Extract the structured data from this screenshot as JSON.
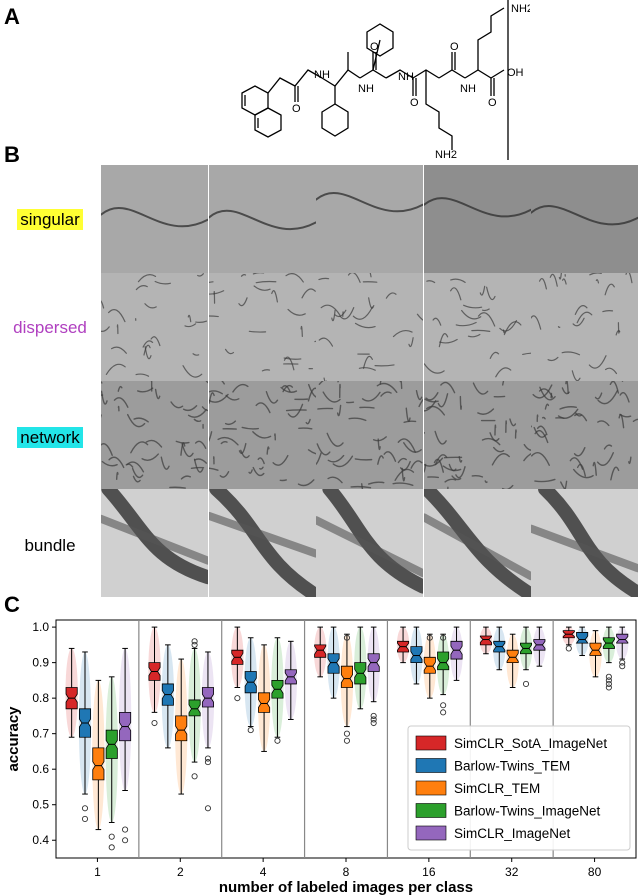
{
  "panels": {
    "a": "A",
    "b": "B",
    "c": "C"
  },
  "chemistry": {
    "labels": [
      "NH2",
      "NH",
      "NH",
      "NH",
      "NH",
      "OH",
      "NH2",
      "O",
      "O",
      "O",
      "O",
      "O"
    ]
  },
  "micrographs": {
    "rows": [
      {
        "label": "singular",
        "highlight": "#ffff33",
        "text_color": "#000000"
      },
      {
        "label": "dispersed",
        "highlight": "",
        "text_color": "#b040c0"
      },
      {
        "label": "network",
        "highlight": "#22e5e8",
        "text_color": "#000000"
      },
      {
        "label": "bundle",
        "highlight": "",
        "text_color": "#000000"
      }
    ],
    "columns": 5
  },
  "chart_data": {
    "type": "box",
    "xlabel": "number of labeled images per class",
    "ylabel": "accuracy",
    "categories": [
      "1",
      "2",
      "4",
      "8",
      "16",
      "32",
      "80"
    ],
    "ylim": [
      0.35,
      1.02
    ],
    "yticks": [
      0.4,
      0.5,
      0.6,
      0.7,
      0.8,
      0.9,
      1.0
    ],
    "legend_position": "bottom-right",
    "series": [
      {
        "name": "SimCLR_SotA_ImageNet",
        "color": "#d62728",
        "medians": [
          0.8,
          0.875,
          0.915,
          0.935,
          0.945,
          0.965,
          0.98
        ],
        "q1": [
          0.77,
          0.85,
          0.895,
          0.915,
          0.93,
          0.95,
          0.97
        ],
        "q3": [
          0.83,
          0.9,
          0.935,
          0.95,
          0.96,
          0.975,
          0.99
        ],
        "whislo": [
          0.69,
          0.76,
          0.83,
          0.86,
          0.9,
          0.925,
          0.95
        ],
        "whishi": [
          0.94,
          1.0,
          1.0,
          1.0,
          1.0,
          1.0,
          1.0
        ],
        "fliers": [
          [],
          [
            0.73
          ],
          [
            0.8
          ],
          [],
          [],
          [],
          [
            0.94
          ]
        ]
      },
      {
        "name": "Barlow-Twins_TEM",
        "color": "#1f77b4",
        "medians": [
          0.73,
          0.81,
          0.845,
          0.9,
          0.92,
          0.945,
          0.965
        ],
        "q1": [
          0.69,
          0.78,
          0.815,
          0.87,
          0.9,
          0.93,
          0.955
        ],
        "q3": [
          0.77,
          0.84,
          0.875,
          0.925,
          0.945,
          0.96,
          0.985
        ],
        "whislo": [
          0.53,
          0.66,
          0.72,
          0.8,
          0.84,
          0.88,
          0.92
        ],
        "whishi": [
          0.93,
          0.95,
          0.97,
          1.0,
          1.0,
          1.0,
          1.0
        ],
        "fliers": [
          [
            0.49,
            0.46
          ],
          [],
          [
            0.71
          ],
          [],
          [],
          [],
          []
        ]
      },
      {
        "name": "SimCLR_TEM",
        "color": "#ff7f0e",
        "medians": [
          0.61,
          0.71,
          0.785,
          0.855,
          0.89,
          0.915,
          0.935
        ],
        "q1": [
          0.57,
          0.68,
          0.76,
          0.83,
          0.87,
          0.9,
          0.92
        ],
        "q3": [
          0.66,
          0.75,
          0.815,
          0.89,
          0.915,
          0.935,
          0.955
        ],
        "whislo": [
          0.43,
          0.53,
          0.65,
          0.72,
          0.8,
          0.83,
          0.86
        ],
        "whishi": [
          0.85,
          0.91,
          0.95,
          0.98,
          0.98,
          0.98,
          0.99
        ],
        "fliers": [
          [],
          [],
          [],
          [
            0.7,
            0.68,
            0.97
          ],
          [
            0.97
          ],
          [],
          []
        ]
      },
      {
        "name": "Barlow-Twins_ImageNet",
        "color": "#2ca02c",
        "medians": [
          0.67,
          0.77,
          0.825,
          0.87,
          0.9,
          0.94,
          0.955
        ],
        "q1": [
          0.63,
          0.75,
          0.8,
          0.84,
          0.88,
          0.925,
          0.94
        ],
        "q3": [
          0.71,
          0.795,
          0.85,
          0.9,
          0.93,
          0.955,
          0.97
        ],
        "whislo": [
          0.45,
          0.62,
          0.69,
          0.77,
          0.81,
          0.88,
          0.9
        ],
        "whishi": [
          0.86,
          0.94,
          0.97,
          1.0,
          0.98,
          1.0,
          1.0
        ],
        "fliers": [
          [
            0.41,
            0.38
          ],
          [
            0.96,
            0.95,
            0.58
          ],
          [
            0.68
          ],
          [],
          [
            0.78,
            0.76,
            0.97
          ],
          [
            0.84
          ],
          [
            0.86,
            0.85,
            0.84,
            0.83
          ]
        ]
      },
      {
        "name": "SimCLR_ImageNet",
        "color": "#9467bd",
        "medians": [
          0.72,
          0.8,
          0.86,
          0.9,
          0.935,
          0.95,
          0.965
        ],
        "q1": [
          0.68,
          0.775,
          0.84,
          0.875,
          0.91,
          0.935,
          0.955
        ],
        "q3": [
          0.76,
          0.83,
          0.88,
          0.925,
          0.96,
          0.965,
          0.98
        ],
        "whislo": [
          0.54,
          0.66,
          0.74,
          0.79,
          0.85,
          0.89,
          0.91
        ],
        "whishi": [
          0.94,
          0.93,
          0.96,
          1.0,
          1.0,
          1.0,
          1.0
        ],
        "fliers": [
          [
            0.43,
            0.4
          ],
          [
            0.63,
            0.62,
            0.49
          ],
          [],
          [
            0.75,
            0.74,
            0.73
          ],
          [],
          [],
          [
            0.9,
            0.89
          ]
        ]
      }
    ]
  }
}
